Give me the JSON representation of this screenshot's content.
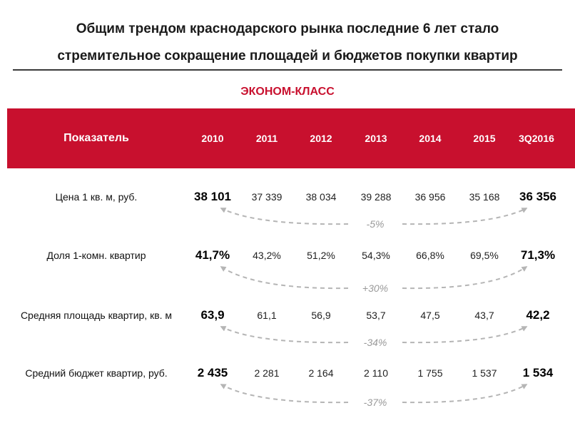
{
  "title": {
    "line1": "Общим трендом краснодарского рынка последние 6 лет стало",
    "line2": "стремительное сокращение площадей и бюджетов покупки квартир"
  },
  "section_title": "ЭКОНОМ-КЛАСС",
  "table": {
    "header": {
      "label": "Показатель",
      "years": [
        "2010",
        "2011",
        "2012",
        "2013",
        "2014",
        "2015",
        "3Q2016"
      ]
    },
    "rows": [
      {
        "label": "Цена 1 кв. м, руб.",
        "values": [
          "38 101",
          "37 339",
          "38 034",
          "39 288",
          "36 956",
          "35 168",
          "36 356"
        ],
        "change": "-5%"
      },
      {
        "label": "Доля 1-комн. квартир",
        "values": [
          "41,7%",
          "43,2%",
          "51,2%",
          "54,3%",
          "66,8%",
          "69,5%",
          "71,3%"
        ],
        "change": "+30%"
      },
      {
        "label": "Средняя площадь квартир, кв. м",
        "values": [
          "63,9",
          "61,1",
          "56,9",
          "53,7",
          "47,5",
          "43,7",
          "42,2"
        ],
        "change": "-34%"
      },
      {
        "label": "Средний бюджет квартир, руб.",
        "values": [
          "2 435",
          "2 281",
          "2 164",
          "2 110",
          "1 755",
          "1 537",
          "1 534"
        ],
        "change": "-37%"
      }
    ]
  },
  "colors": {
    "accent": "#c8102e",
    "arrow": "#b5b5b5",
    "change_text": "#9a9a9a"
  }
}
